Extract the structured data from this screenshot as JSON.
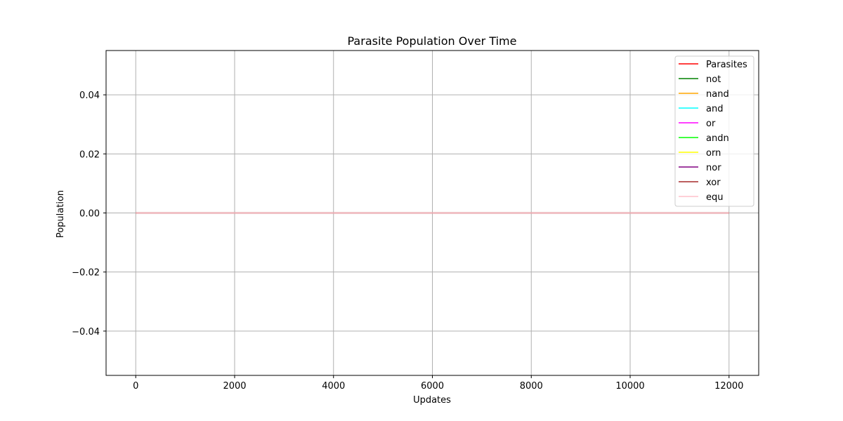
{
  "chart_data": {
    "type": "line",
    "title": "Parasite Population Over Time",
    "xlabel": "Updates",
    "ylabel": "Population",
    "xlim": [
      -600,
      12600
    ],
    "ylim": [
      -0.055,
      0.055
    ],
    "x_ticks": [
      0,
      2000,
      4000,
      6000,
      8000,
      10000,
      12000
    ],
    "x_tick_labels": [
      "0",
      "2000",
      "4000",
      "6000",
      "8000",
      "10000",
      "12000"
    ],
    "y_ticks": [
      0.04,
      0.02,
      0.0,
      -0.02,
      -0.04
    ],
    "y_tick_labels": [
      "0.04",
      "0.02",
      "0.00",
      "−0.02",
      "−0.04"
    ],
    "grid": true,
    "legend_position": "top-right",
    "x": [
      0,
      12000
    ],
    "series": [
      {
        "name": "Parasites",
        "color": "#ff0000",
        "values": [
          0,
          0
        ]
      },
      {
        "name": "not",
        "color": "#008000",
        "values": [
          0,
          0
        ]
      },
      {
        "name": "nand",
        "color": "#ffa500",
        "values": [
          0,
          0
        ]
      },
      {
        "name": "and",
        "color": "#00ffff",
        "values": [
          0,
          0
        ]
      },
      {
        "name": "or",
        "color": "#ff00ff",
        "values": [
          0,
          0
        ]
      },
      {
        "name": "andn",
        "color": "#00ff00",
        "values": [
          0,
          0
        ]
      },
      {
        "name": "orn",
        "color": "#ffff00",
        "values": [
          0,
          0
        ]
      },
      {
        "name": "nor",
        "color": "#800080",
        "values": [
          0,
          0
        ]
      },
      {
        "name": "xor",
        "color": "#a52a2a",
        "values": [
          0,
          0
        ]
      },
      {
        "name": "equ",
        "color": "#ffc0cb",
        "values": [
          0,
          0
        ]
      }
    ]
  }
}
